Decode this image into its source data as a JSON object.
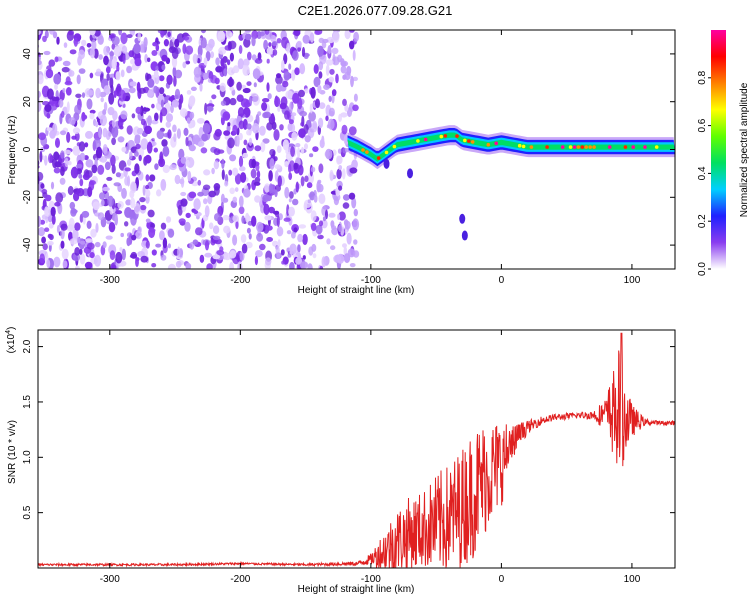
{
  "title": "C2E1.2026.077.09.28.G21",
  "chart_data": [
    {
      "type": "heatmap",
      "title": "C2E1.2026.077.09.28.G21",
      "xlabel": "Height of straight line (km)",
      "ylabel": "Frequency (Hz)",
      "xlim": [
        -355,
        133
      ],
      "ylim": [
        -50,
        50
      ],
      "xticks": [
        -300,
        -200,
        -100,
        0,
        100
      ],
      "xtick_labels": [
        "-300",
        "-200",
        "-100",
        "0",
        "100"
      ],
      "yticks": [
        -40,
        -20,
        0,
        20,
        40
      ],
      "ytick_labels": [
        "-40",
        "-20",
        "0",
        "20",
        "40"
      ],
      "colorbar": {
        "label": "Normalized spectral amplitude",
        "range": [
          0,
          1
        ],
        "ticks": [
          0,
          0.2,
          0.4,
          0.6,
          0.8
        ],
        "tick_labels": [
          "0.0",
          "0.2",
          "0.4",
          "0.6",
          "0.8"
        ],
        "colors": [
          "#ffffff",
          "#8a3df0",
          "#2020ff",
          "#00d0ff",
          "#00e060",
          "#60ff00",
          "#ffff00",
          "#ff8000",
          "#ff0000",
          "#ff00a0"
        ]
      },
      "noise_region_x": [
        -355,
        -115
      ],
      "signal_track": {
        "x": [
          -118,
          -110,
          -100,
          -95,
          -90,
          -85,
          -80,
          -70,
          -60,
          -50,
          -40,
          -35,
          -30,
          -20,
          -10,
          0,
          10,
          20,
          40,
          60,
          80,
          100,
          133
        ],
        "freq": [
          3,
          1,
          -2,
          -4,
          -2,
          0,
          2,
          3,
          4,
          5,
          6,
          6,
          4,
          3,
          2,
          3,
          2,
          1,
          1,
          1,
          1,
          1,
          1
        ]
      },
      "isolated_features": [
        {
          "x": -88,
          "freq": -6
        },
        {
          "x": -70,
          "freq": -10
        },
        {
          "x": -30,
          "freq": -29
        },
        {
          "x": -28,
          "freq": -36
        }
      ]
    },
    {
      "type": "line",
      "xlabel": "Height of straight line (km)",
      "ylabel": "SNR (10 * v/v)",
      "y_scale_label": "(x10",
      "y_scale_exponent": "4",
      "xlim": [
        -355,
        133
      ],
      "ylim": [
        0,
        2.15
      ],
      "xticks": [
        -300,
        -200,
        -100,
        0,
        100
      ],
      "xtick_labels": [
        "-300",
        "-200",
        "-100",
        "0",
        "100"
      ],
      "yticks": [
        0.5,
        1.0,
        1.5,
        2.0
      ],
      "ytick_labels": [
        "0.5",
        "1.0",
        "1.5",
        "2.0"
      ],
      "series": [
        {
          "name": "SNR",
          "color": "#e02020",
          "x": [
            -355,
            -300,
            -250,
            -200,
            -150,
            -110,
            -100,
            -90,
            -80,
            -70,
            -60,
            -50,
            -40,
            -30,
            -20,
            -10,
            0,
            5,
            10,
            15,
            20,
            25,
            30,
            40,
            50,
            60,
            70,
            80,
            90,
            95,
            100,
            110,
            120,
            133
          ],
          "y": [
            0.03,
            0.03,
            0.03,
            0.04,
            0.03,
            0.04,
            0.08,
            0.15,
            0.25,
            0.3,
            0.35,
            0.4,
            0.45,
            0.55,
            0.7,
            0.85,
            0.95,
            1.05,
            1.15,
            1.22,
            1.27,
            1.3,
            1.33,
            1.36,
            1.37,
            1.38,
            1.38,
            1.39,
            1.4,
            1.35,
            1.33,
            1.32,
            1.31,
            1.31
          ],
          "noise_amplitude": [
            0.01,
            0.01,
            0.01,
            0.01,
            0.01,
            0.02,
            0.05,
            0.2,
            0.3,
            0.35,
            0.35,
            0.45,
            0.5,
            0.55,
            0.6,
            0.5,
            0.4,
            0.25,
            0.15,
            0.1,
            0.06,
            0.05,
            0.04,
            0.03,
            0.03,
            0.03,
            0.04,
            0.15,
            0.6,
            0.35,
            0.15,
            0.03,
            0.02,
            0.02
          ]
        }
      ],
      "peak": {
        "x": 92,
        "y": 2.12
      }
    }
  ]
}
